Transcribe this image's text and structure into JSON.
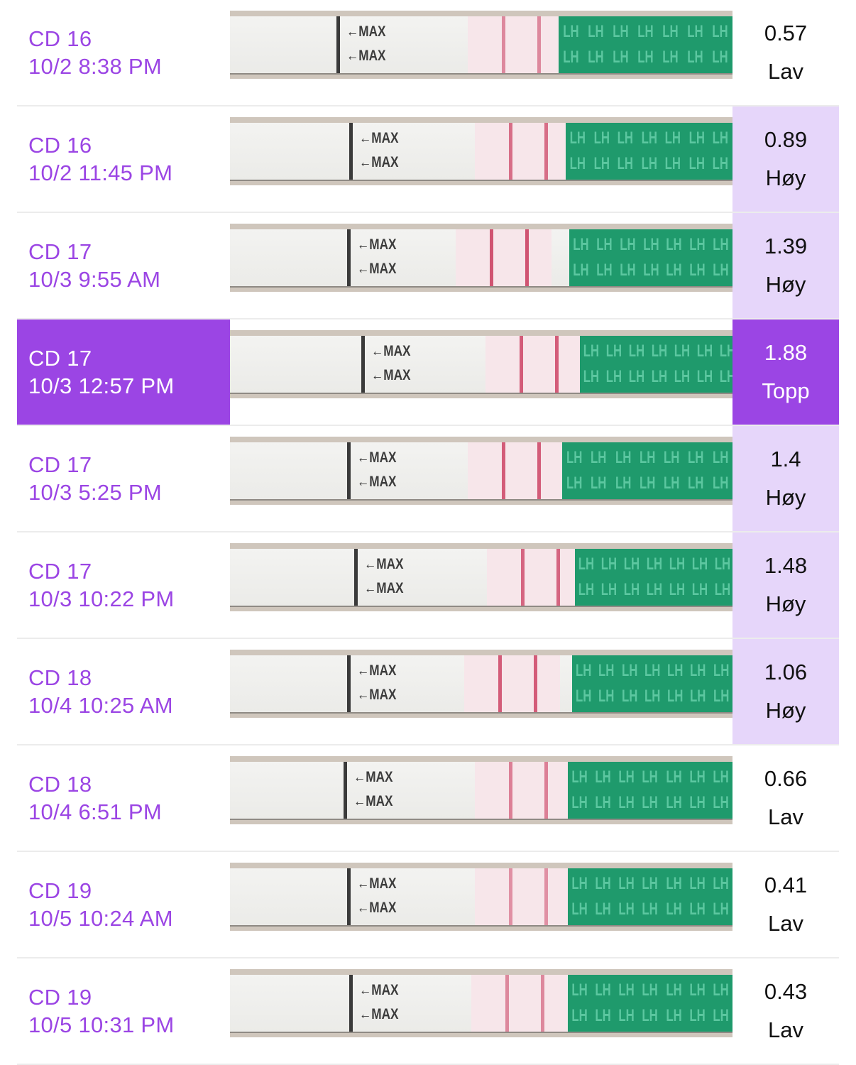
{
  "colors": {
    "accent": "#9b45e4",
    "high_bg": "#e6d6fa",
    "divider": "#ececec",
    "strip_green": "#1f9a6c",
    "test_line": "#c93a5d"
  },
  "strip_text": {
    "max_label": "←MAX",
    "lh_label": "LH"
  },
  "rows": [
    {
      "cycle_day": "CD 16",
      "datetime": "10/2 8:38 PM",
      "value": "0.57",
      "level": "Lav",
      "state": "low",
      "line_intensity": 0.55
    },
    {
      "cycle_day": "CD 16",
      "datetime": "10/2 11:45 PM",
      "value": "0.89",
      "level": "Høy",
      "state": "high",
      "line_intensity": 0.7
    },
    {
      "cycle_day": "CD 17",
      "datetime": "10/3 9:55 AM",
      "value": "1.39",
      "level": "Høy",
      "state": "high",
      "line_intensity": 0.85
    },
    {
      "cycle_day": "CD 17",
      "datetime": "10/3 12:57 PM",
      "value": "1.88",
      "level": "Topp",
      "state": "selected",
      "line_intensity": 0.8
    },
    {
      "cycle_day": "CD 17",
      "datetime": "10/3 5:25 PM",
      "value": "1.4",
      "level": "Høy",
      "state": "high",
      "line_intensity": 0.8
    },
    {
      "cycle_day": "CD 17",
      "datetime": "10/3 10:22 PM",
      "value": "1.48",
      "level": "Høy",
      "state": "high",
      "line_intensity": 0.75
    },
    {
      "cycle_day": "CD 18",
      "datetime": "10/4 10:25 AM",
      "value": "1.06",
      "level": "Høy",
      "state": "high",
      "line_intensity": 0.8
    },
    {
      "cycle_day": "CD 18",
      "datetime": "10/4 6:51 PM",
      "value": "0.66",
      "level": "Lav",
      "state": "low",
      "line_intensity": 0.6
    },
    {
      "cycle_day": "CD 19",
      "datetime": "10/5 10:24 AM",
      "value": "0.41",
      "level": "Lav",
      "state": "low",
      "line_intensity": 0.5
    },
    {
      "cycle_day": "CD 19",
      "datetime": "10/5 10:31 PM",
      "value": "0.43",
      "level": "Lav",
      "state": "low",
      "line_intensity": 0.55
    }
  ]
}
